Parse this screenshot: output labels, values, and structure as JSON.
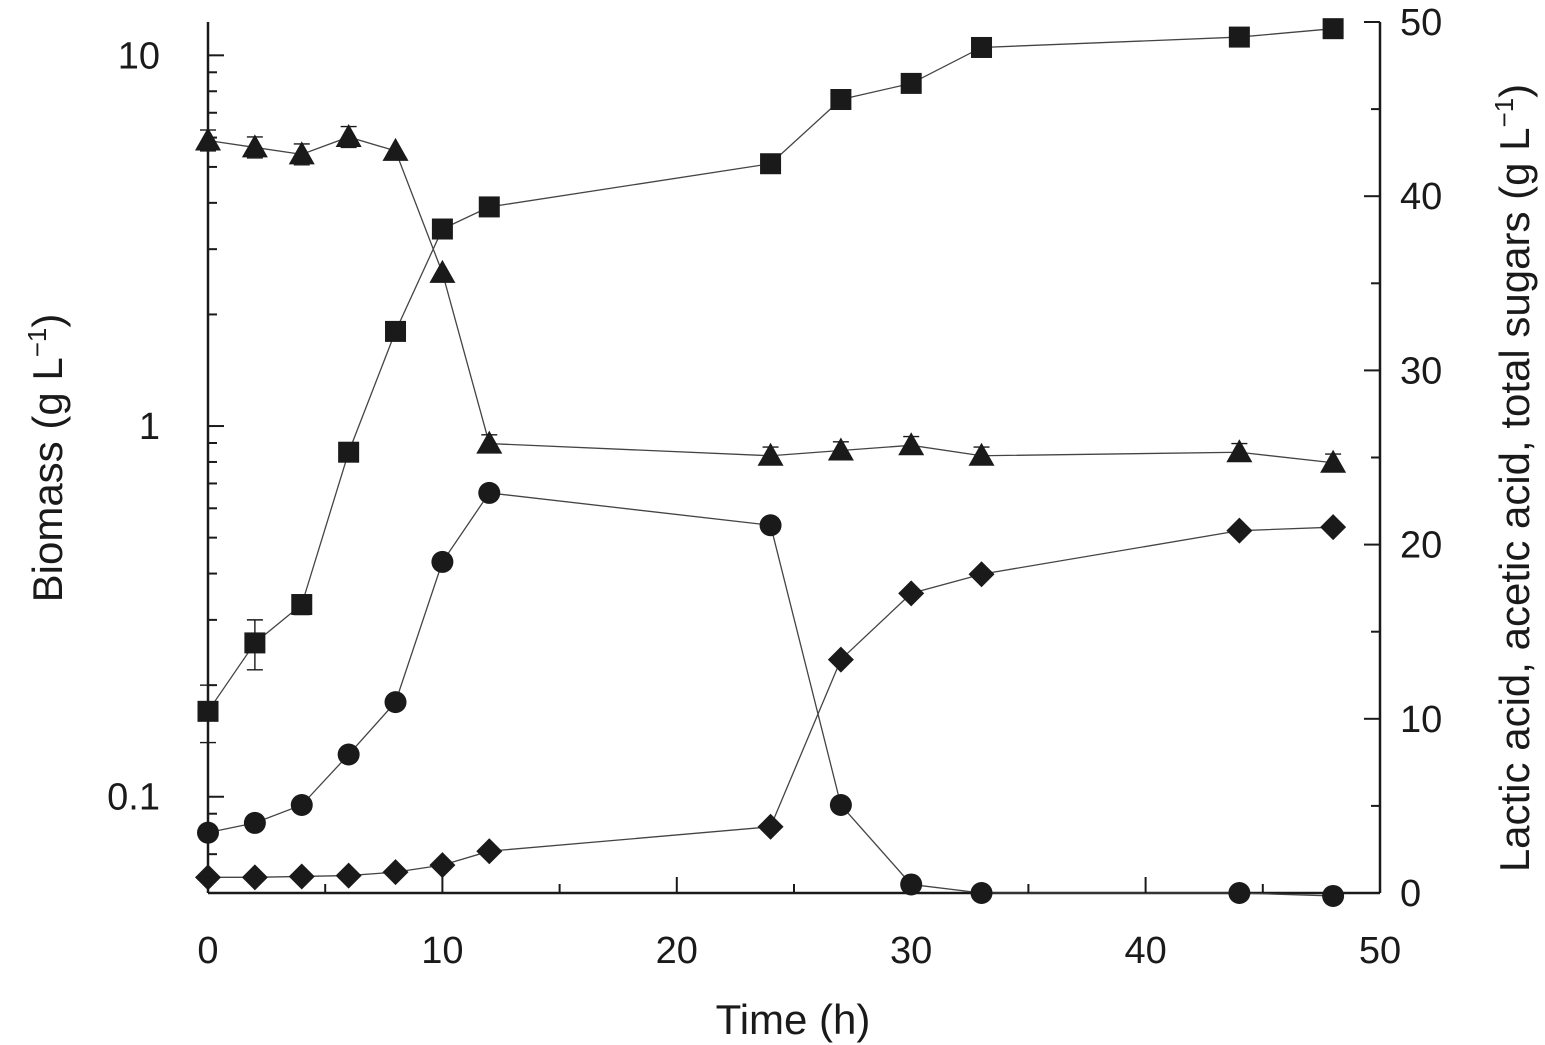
{
  "chart_data": {
    "type": "scatter",
    "title": "",
    "xlabel": "Time (h)",
    "ylabel_left": {
      "main": "Biomass (g L",
      "exp": "−1",
      "close": ")"
    },
    "ylabel_right": {
      "main": "Lactic acid, acetic acid, total sugars (g L",
      "exp": "−1",
      "close": ")"
    },
    "xlim": [
      0,
      50
    ],
    "ylim_left": [
      0.055,
      12.3
    ],
    "yscale_left": "log",
    "ylim_right": [
      0,
      50
    ],
    "x_ticks": [
      0,
      10,
      20,
      30,
      40,
      50
    ],
    "x_tick_labels": [
      "0",
      "10",
      "20",
      "30",
      "40",
      "50"
    ],
    "y_left_ticks": [
      0.1,
      1,
      10
    ],
    "y_left_tick_labels": [
      "0.1",
      "1",
      "10"
    ],
    "y_right_ticks": [
      0,
      10,
      20,
      30,
      40,
      50
    ],
    "y_right_tick_labels": [
      "0",
      "10",
      "20",
      "30",
      "40",
      "50"
    ],
    "legend": "none",
    "grid": false,
    "series": [
      {
        "id": "squares",
        "marker": "square",
        "axis": "left",
        "x": [
          0,
          2,
          4,
          6,
          8,
          10,
          12,
          24,
          27,
          30,
          33,
          44,
          48
        ],
        "y": [
          0.17,
          0.26,
          0.33,
          0.85,
          1.8,
          3.4,
          3.9,
          5.1,
          7.6,
          8.4,
          10.5,
          11.2,
          11.8
        ],
        "err": [
          0.03,
          0.04,
          0.02,
          0,
          0,
          0,
          0,
          0,
          0,
          0,
          0,
          0,
          0
        ]
      },
      {
        "id": "circles",
        "marker": "circle",
        "axis": "left",
        "x": [
          0,
          2,
          4,
          6,
          8,
          10,
          12,
          24,
          27,
          30,
          33,
          44,
          48
        ],
        "y": [
          0.08,
          0.085,
          0.095,
          0.13,
          0.18,
          0.43,
          0.66,
          0.54,
          0.095,
          0.058,
          0.055,
          0.055,
          0.054
        ],
        "err": [
          0,
          0,
          0,
          0,
          0,
          0,
          0,
          0,
          0,
          0,
          0,
          0,
          0
        ]
      },
      {
        "id": "triangles",
        "marker": "triangle",
        "axis": "right",
        "x": [
          0,
          2,
          4,
          6,
          8,
          10,
          12,
          24,
          27,
          30,
          33,
          44,
          48
        ],
        "y": [
          43.2,
          42.8,
          42.4,
          43.4,
          42.6,
          35.6,
          25.8,
          25.1,
          25.4,
          25.7,
          25.1,
          25.3,
          24.7
        ],
        "err": [
          0.6,
          0.6,
          0.6,
          0.6,
          0,
          0,
          0.5,
          0.5,
          0.5,
          0.5,
          0.5,
          0.5,
          0.5
        ]
      },
      {
        "id": "diamonds",
        "marker": "diamond",
        "axis": "right",
        "x": [
          0,
          2,
          4,
          6,
          8,
          10,
          12,
          24,
          27,
          30,
          33,
          44,
          48
        ],
        "y": [
          0.9,
          0.9,
          0.95,
          1.0,
          1.2,
          1.6,
          2.4,
          3.8,
          13.4,
          17.2,
          18.3,
          20.8,
          21.0
        ],
        "err": [
          0,
          0,
          0,
          0,
          0,
          0,
          0,
          0,
          0,
          0,
          0,
          0,
          0
        ]
      }
    ]
  }
}
